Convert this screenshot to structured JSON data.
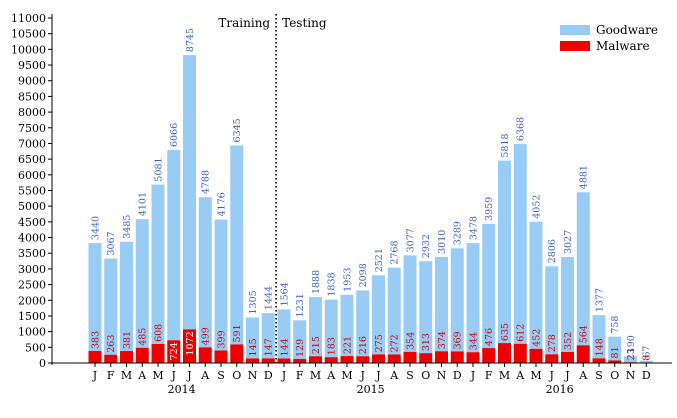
{
  "chart_data": {
    "type": "bar",
    "stacked": true,
    "ylim": [
      0,
      11000
    ],
    "yticks": [
      0,
      500,
      1000,
      1500,
      2000,
      2500,
      3000,
      3500,
      4000,
      4500,
      5000,
      5500,
      6000,
      6500,
      7000,
      7500,
      8000,
      8500,
      9000,
      9500,
      10000,
      10500,
      11000
    ],
    "categories": [
      "J",
      "F",
      "M",
      "A",
      "M",
      "J",
      "J",
      "A",
      "S",
      "O",
      "N",
      "D",
      "J",
      "F",
      "M",
      "A",
      "M",
      "J",
      "J",
      "A",
      "S",
      "O",
      "N",
      "D",
      "J",
      "F",
      "M",
      "A",
      "M",
      "J",
      "J",
      "A",
      "S",
      "O",
      "N",
      "D"
    ],
    "year_labels": [
      "2014",
      "2015",
      "2016"
    ],
    "series": [
      {
        "name": "Goodware",
        "color": "#99ccf5",
        "values": [
          3440,
          3067,
          3485,
          4101,
          5081,
          6066,
          8745,
          4788,
          4176,
          6345,
          1305,
          1444,
          1564,
          1231,
          1888,
          1838,
          1953,
          2098,
          2521,
          2768,
          3077,
          2932,
          3010,
          3289,
          3478,
          3959,
          5818,
          6368,
          4052,
          2806,
          3027,
          4881,
          1377,
          758,
          190,
          67
        ]
      },
      {
        "name": "Malware",
        "color": "#ee0000",
        "values": [
          383,
          263,
          381,
          485,
          608,
          724,
          1072,
          499,
          399,
          591,
          145,
          147,
          144,
          129,
          215,
          183,
          221,
          216,
          275,
          272,
          354,
          313,
          374,
          369,
          344,
          476,
          635,
          612,
          452,
          278,
          352,
          564,
          148,
          81,
          23,
          8
        ]
      }
    ],
    "annotations": [
      "Training",
      "Testing"
    ],
    "split_after_index": 11,
    "legend_position": "top-right",
    "grid": false
  }
}
